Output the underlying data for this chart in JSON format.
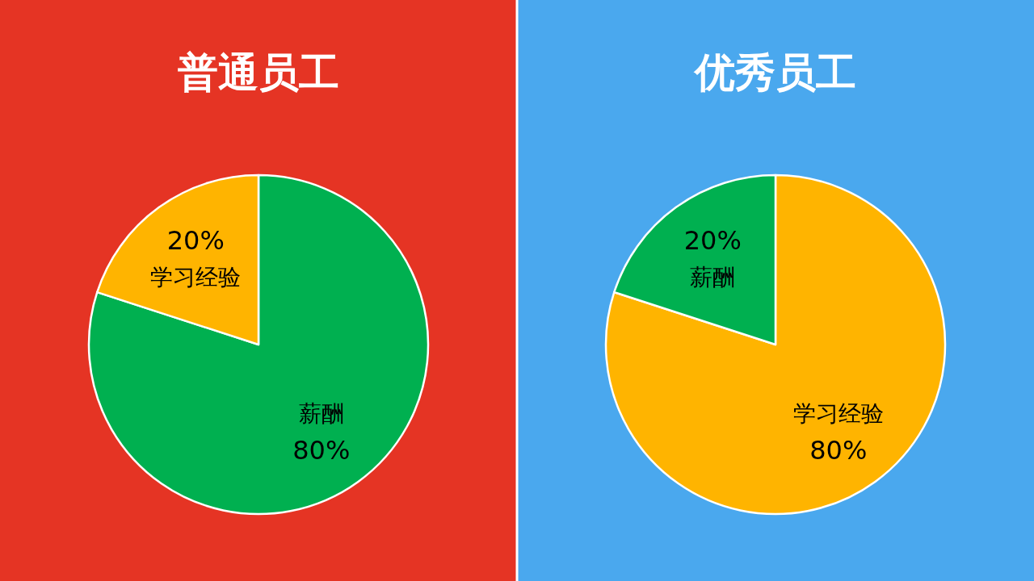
{
  "chart_data": [
    {
      "type": "pie",
      "title": "普通员工",
      "categories": [
        "薪酬",
        "学习经验"
      ],
      "values": [
        80,
        20
      ],
      "value_labels": [
        "80%",
        "20%"
      ],
      "colors": [
        "#00b050",
        "#ffb400"
      ]
    },
    {
      "type": "pie",
      "title": "优秀员工",
      "categories": [
        "学习经验",
        "薪酬"
      ],
      "values": [
        80,
        20
      ],
      "value_labels": [
        "80%",
        "20%"
      ],
      "colors": [
        "#ffb400",
        "#00b050"
      ]
    }
  ]
}
